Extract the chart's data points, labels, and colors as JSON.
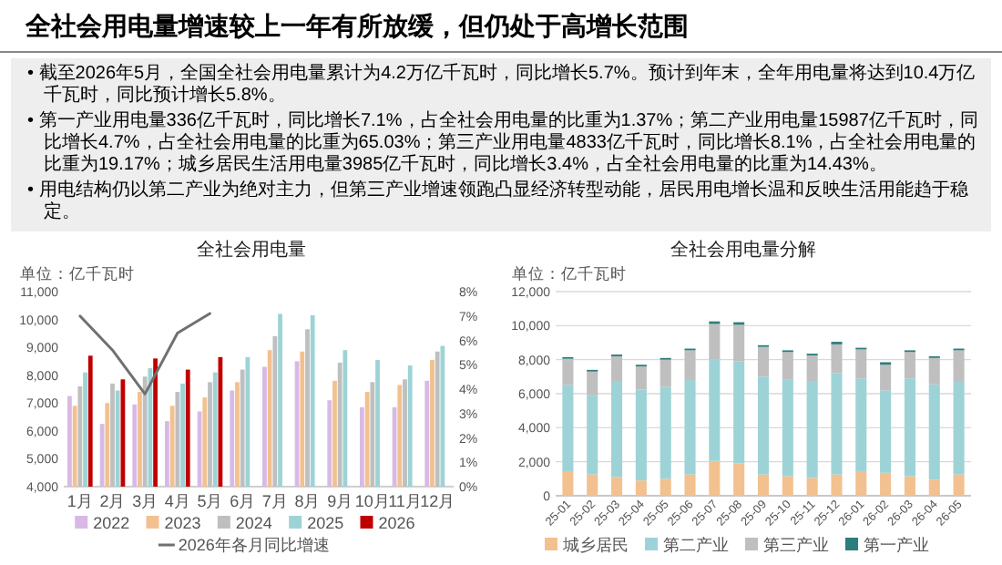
{
  "chart_data": [
    {
      "type": "other",
      "title": "全社会用电量增速较上一年有所放缓，但仍处于高增长范围",
      "annotations": [
        "• 截至2026年5月，全国全社会用电量累计为4.2万亿千瓦时，同比增长5.7%。预计到年末，全年用电量将达到10.4万亿千瓦时，同比预计增长5.8%。",
        "• 第一产业用电量336亿千瓦时，同比增长7.1%，占全社会用电量的比重为1.37%；第二产业用电量15987亿千瓦时，同比增长4.7%，占全社会用电量的比重为65.03%；第三产业用电量4833亿千瓦时，同比增长8.1%，占全社会用电量的比重为19.17%；城乡居民生活用电量3985亿千瓦时，同比增长3.4%，占全社会用电量的比重为14.43%。",
        "• 用电结构仍以第二产业为绝对主力，但第三产业增速领跑凸显经济转型动能，居民用电增长温和反映生活用能趋于稳定。"
      ]
    },
    {
      "type": "bar",
      "title": "全社会用电量",
      "annotations": [
        "单位：亿千瓦时"
      ],
      "legend": "bottom",
      "categories": [
        "1月",
        "2月",
        "3月",
        "4月",
        "5月",
        "6月",
        "7月",
        "8月",
        "9月",
        "10月",
        "11月",
        "12月"
      ],
      "series": [
        {
          "name": "2022",
          "color": "#d8b9e6",
          "values": [
            7250,
            6250,
            6950,
            6350,
            6700,
            7450,
            8300,
            8500,
            7100,
            6850,
            6850,
            7800
          ]
        },
        {
          "name": "2023",
          "color": "#f2c18f",
          "values": [
            6900,
            7000,
            7400,
            6900,
            7200,
            7750,
            8900,
            8850,
            7800,
            7400,
            7650,
            8550
          ]
        },
        {
          "name": "2024",
          "color": "#bfbfbf",
          "values": [
            7600,
            7700,
            7950,
            7400,
            7750,
            8200,
            9400,
            9650,
            8450,
            7750,
            7850,
            8850
          ]
        },
        {
          "name": "2025",
          "color": "#9dd3d6",
          "values": [
            8100,
            7450,
            8250,
            7700,
            8100,
            8650,
            10200,
            10150,
            8900,
            8550,
            8350,
            9050
          ]
        },
        {
          "name": "2026",
          "color": "#c00000",
          "values": [
            8700,
            7850,
            8600,
            8200,
            8650,
            null,
            null,
            null,
            null,
            null,
            null,
            null
          ]
        },
        {
          "name": "2026年各月同比增速",
          "type": "line",
          "axis": "y2",
          "color": "#707070",
          "values": [
            7.0,
            5.6,
            3.8,
            6.3,
            7.1,
            null,
            null,
            null,
            null,
            null,
            null,
            null
          ]
        }
      ],
      "ylim": [
        4000,
        11000
      ],
      "yticks": [
        {
          "value": 4000,
          "label": "4,000"
        },
        {
          "value": 5000,
          "label": "5,000"
        },
        {
          "value": 6000,
          "label": "6,000"
        },
        {
          "value": 7000,
          "label": "7,000"
        },
        {
          "value": 8000,
          "label": "8,000"
        },
        {
          "value": 9000,
          "label": "9,000"
        },
        {
          "value": 10000,
          "label": "10,000"
        },
        {
          "value": 11000,
          "label": "11,000"
        }
      ],
      "y2lim": [
        0,
        8
      ],
      "y2ticks": [
        {
          "value": 0,
          "label": "0%"
        },
        {
          "value": 1,
          "label": "1%"
        },
        {
          "value": 2,
          "label": "2%"
        },
        {
          "value": 3,
          "label": "3%"
        },
        {
          "value": 4,
          "label": "4%"
        },
        {
          "value": 5,
          "label": "5%"
        },
        {
          "value": 6,
          "label": "6%"
        },
        {
          "value": 7,
          "label": "7%"
        },
        {
          "value": 8,
          "label": "8%"
        }
      ]
    },
    {
      "type": "bar",
      "stacked": true,
      "title": "全社会用电量分解",
      "annotations": [
        "单位：亿千瓦时"
      ],
      "legend": "bottom",
      "grid": "y",
      "categories": [
        "25-01",
        "25-02",
        "25-03",
        "25-04",
        "25-05",
        "25-06",
        "25-07",
        "25-08",
        "25-09",
        "25-10",
        "25-11",
        "25-12",
        "26-01",
        "26-02",
        "26-03",
        "26-04",
        "26-05"
      ],
      "series": [
        {
          "name": "城乡居民",
          "color": "#f2c18f",
          "values": [
            1400,
            1250,
            1100,
            900,
            1000,
            1250,
            2050,
            1900,
            1250,
            1150,
            1050,
            1250,
            1450,
            1350,
            1150,
            950,
            1250
          ]
        },
        {
          "name": "第二产业",
          "color": "#9dd3d6",
          "values": [
            5100,
            4650,
            5600,
            5350,
            5400,
            5550,
            5950,
            6000,
            5750,
            5700,
            5650,
            5950,
            5450,
            4850,
            5750,
            5600,
            5500
          ]
        },
        {
          "name": "第三产业",
          "color": "#bfbfbf",
          "values": [
            1550,
            1400,
            1500,
            1350,
            1600,
            1750,
            2100,
            2150,
            1750,
            1600,
            1550,
            1700,
            1700,
            1500,
            1550,
            1550,
            1800
          ]
        },
        {
          "name": "第一产业",
          "color": "#2e7d7d",
          "values": [
            100,
            100,
            100,
            100,
            100,
            100,
            150,
            150,
            100,
            100,
            100,
            150,
            100,
            150,
            100,
            100,
            100
          ]
        }
      ],
      "ylim": [
        0,
        12000
      ],
      "yticks": [
        0,
        {
          "value": 2000,
          "label": "2,000"
        },
        {
          "value": 4000,
          "label": "4,000"
        },
        {
          "value": 6000,
          "label": "6,000"
        },
        {
          "value": 8000,
          "label": "8,000"
        },
        {
          "value": 10000,
          "label": "10,000"
        },
        {
          "value": 12000,
          "label": "12,000"
        }
      ]
    }
  ]
}
